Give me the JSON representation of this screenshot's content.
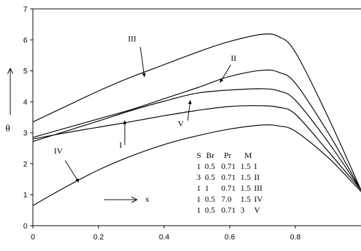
{
  "chart_data": {
    "type": "line",
    "title": "",
    "xlabel": "x",
    "ylabel": "θ",
    "xlim": [
      0,
      1
    ],
    "ylim": [
      0,
      7
    ],
    "xticks": [
      0,
      0.2,
      0.4,
      0.6,
      0.8
    ],
    "yticks": [
      0,
      1,
      2,
      3,
      4,
      5,
      6,
      7
    ],
    "grid": false,
    "legend": {
      "placement": "center-right",
      "header": [
        "S",
        "Br",
        "Pr",
        "M"
      ],
      "rows": [
        {
          "S": "1",
          "Br": "0.5",
          "Pr": "0.71",
          "M": "1.5",
          "curve": "I"
        },
        {
          "S": "3",
          "Br": "0.5",
          "Pr": "0.71",
          "M": "1.5",
          "curve": "II"
        },
        {
          "S": "1",
          "Br": "1",
          "Pr": "0.71",
          "M": "1.5",
          "curve": "III"
        },
        {
          "S": "1",
          "Br": "0.5",
          "Pr": "7.0",
          "M": "1.5",
          "curve": "IV"
        },
        {
          "S": "1",
          "Br": "0.5",
          "Pr": "0.71",
          "M": "3",
          "curve": "V"
        }
      ]
    },
    "series": [
      {
        "name": "I",
        "x": [
          0,
          0.1,
          0.2,
          0.3,
          0.4,
          0.5,
          0.6,
          0.7,
          0.75,
          0.8,
          0.9,
          1.0
        ],
        "y": [
          2.8,
          3.0,
          3.18,
          3.36,
          3.55,
          3.72,
          3.85,
          3.87,
          3.82,
          3.6,
          2.4,
          1.15
        ]
      },
      {
        "name": "II",
        "x": [
          0,
          0.1,
          0.2,
          0.3,
          0.4,
          0.5,
          0.6,
          0.7,
          0.75,
          0.8,
          0.9,
          1.0
        ],
        "y": [
          2.85,
          3.15,
          3.45,
          3.75,
          4.1,
          4.45,
          4.82,
          5.02,
          4.95,
          4.6,
          3.0,
          1.15
        ]
      },
      {
        "name": "III",
        "x": [
          0,
          0.1,
          0.2,
          0.3,
          0.4,
          0.5,
          0.6,
          0.7,
          0.75,
          0.8,
          0.9,
          1.0
        ],
        "y": [
          3.35,
          3.85,
          4.35,
          4.8,
          5.2,
          5.6,
          5.95,
          6.18,
          6.1,
          5.6,
          3.5,
          1.15
        ]
      },
      {
        "name": "IV",
        "x": [
          0,
          0.1,
          0.2,
          0.3,
          0.4,
          0.5,
          0.6,
          0.7,
          0.75,
          0.8,
          0.9,
          1.0
        ],
        "y": [
          0.65,
          1.25,
          1.8,
          2.25,
          2.62,
          2.9,
          3.12,
          3.25,
          3.22,
          3.05,
          2.2,
          1.1
        ]
      },
      {
        "name": "V",
        "x": [
          0,
          0.1,
          0.2,
          0.3,
          0.4,
          0.5,
          0.6,
          0.7,
          0.75,
          0.8,
          0.9,
          1.0
        ],
        "y": [
          2.72,
          3.05,
          3.38,
          3.72,
          4.02,
          4.28,
          4.38,
          4.42,
          4.35,
          4.05,
          2.7,
          1.15
        ]
      }
    ],
    "annotations": [
      {
        "label": "I",
        "x": 0.28,
        "y": 3.4
      },
      {
        "label": "II",
        "x": 0.57,
        "y": 4.62
      },
      {
        "label": "III",
        "x": 0.34,
        "y": 4.8
      },
      {
        "label": "IV",
        "x": 0.14,
        "y": 1.4
      },
      {
        "label": "V",
        "x": 0.48,
        "y": 4.05
      }
    ]
  }
}
